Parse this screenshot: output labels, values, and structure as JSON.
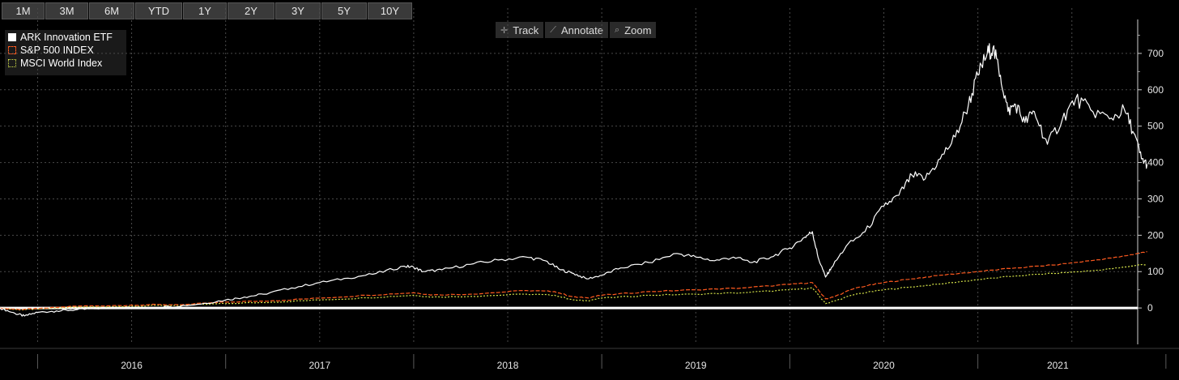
{
  "range_buttons": [
    "1M",
    "3M",
    "6M",
    "YTD",
    "1Y",
    "2Y",
    "3Y",
    "5Y",
    "10Y"
  ],
  "toolbar": [
    {
      "label": "Track",
      "icon": "crosshair-icon",
      "glyph": "✛"
    },
    {
      "label": "Annotate",
      "icon": "pencil-icon",
      "glyph": "⟋"
    },
    {
      "label": "Zoom",
      "icon": "magnifier-icon",
      "glyph": "⌕"
    }
  ],
  "legend": [
    {
      "name": "ARK Innovation ETF",
      "color": "#ffffff",
      "style": "solid"
    },
    {
      "name": "S&P 500 INDEX",
      "color": "#ff5a1f",
      "style": "dashed"
    },
    {
      "name": "MSCI World Index",
      "color": "#d8e64a",
      "style": "dotted"
    }
  ],
  "chart_data": {
    "type": "line",
    "x_axis": {
      "labels": [
        "2016",
        "2017",
        "2018",
        "2019",
        "2020",
        "2021"
      ],
      "range": [
        2015.8,
        2021.85
      ]
    },
    "y_axis": {
      "position": "right",
      "ticks": [
        0,
        100,
        200,
        300,
        400,
        500,
        600,
        700
      ],
      "range": [
        -100,
        780
      ]
    },
    "grid": "dotted",
    "legend_position": "top-left",
    "zero_line": 0,
    "series": [
      {
        "name": "ARK Innovation ETF",
        "color": "#ffffff",
        "style": "solid",
        "points": [
          [
            2015.8,
            0
          ],
          [
            2015.88,
            -15
          ],
          [
            2015.93,
            -22
          ],
          [
            2016.0,
            -12
          ],
          [
            2016.1,
            -8
          ],
          [
            2016.2,
            -5
          ],
          [
            2016.3,
            -2
          ],
          [
            2016.4,
            2
          ],
          [
            2016.55,
            0
          ],
          [
            2016.7,
            4
          ],
          [
            2016.85,
            10
          ],
          [
            2017.0,
            22
          ],
          [
            2017.1,
            30
          ],
          [
            2017.2,
            38
          ],
          [
            2017.35,
            55
          ],
          [
            2017.5,
            70
          ],
          [
            2017.65,
            82
          ],
          [
            2017.8,
            95
          ],
          [
            2017.95,
            115
          ],
          [
            2018.0,
            112
          ],
          [
            2018.05,
            100
          ],
          [
            2018.15,
            105
          ],
          [
            2018.3,
            120
          ],
          [
            2018.45,
            132
          ],
          [
            2018.6,
            140
          ],
          [
            2018.7,
            130
          ],
          [
            2018.78,
            105
          ],
          [
            2018.85,
            95
          ],
          [
            2018.92,
            80
          ],
          [
            2019.0,
            90
          ],
          [
            2019.1,
            110
          ],
          [
            2019.25,
            125
          ],
          [
            2019.4,
            150
          ],
          [
            2019.5,
            140
          ],
          [
            2019.6,
            130
          ],
          [
            2019.7,
            140
          ],
          [
            2019.8,
            125
          ],
          [
            2019.9,
            140
          ],
          [
            2020.0,
            165
          ],
          [
            2020.08,
            195
          ],
          [
            2020.12,
            210
          ],
          [
            2020.15,
            140
          ],
          [
            2020.19,
            85
          ],
          [
            2020.22,
            110
          ],
          [
            2020.3,
            170
          ],
          [
            2020.4,
            210
          ],
          [
            2020.5,
            280
          ],
          [
            2020.58,
            310
          ],
          [
            2020.65,
            365
          ],
          [
            2020.72,
            355
          ],
          [
            2020.8,
            410
          ],
          [
            2020.88,
            470
          ],
          [
            2020.95,
            560
          ],
          [
            2021.0,
            640
          ],
          [
            2021.05,
            700
          ],
          [
            2021.08,
            715
          ],
          [
            2021.12,
            640
          ],
          [
            2021.16,
            540
          ],
          [
            2021.2,
            560
          ],
          [
            2021.25,
            510
          ],
          [
            2021.3,
            540
          ],
          [
            2021.37,
            450
          ],
          [
            2021.45,
            520
          ],
          [
            2021.52,
            575
          ],
          [
            2021.6,
            545
          ],
          [
            2021.7,
            520
          ],
          [
            2021.78,
            545
          ],
          [
            2021.83,
            480
          ],
          [
            2021.87,
            410
          ],
          [
            2021.9,
            395
          ]
        ]
      },
      {
        "name": "S&P 500 INDEX",
        "color": "#ff5a1f",
        "style": "dashed",
        "points": [
          [
            2015.8,
            0
          ],
          [
            2015.9,
            -4
          ],
          [
            2016.0,
            -2
          ],
          [
            2016.2,
            5
          ],
          [
            2016.5,
            8
          ],
          [
            2016.8,
            10
          ],
          [
            2017.0,
            16
          ],
          [
            2017.25,
            20
          ],
          [
            2017.5,
            27
          ],
          [
            2017.75,
            35
          ],
          [
            2018.0,
            42
          ],
          [
            2018.1,
            36
          ],
          [
            2018.3,
            38
          ],
          [
            2018.6,
            48
          ],
          [
            2018.75,
            45
          ],
          [
            2018.85,
            30
          ],
          [
            2018.92,
            28
          ],
          [
            2019.0,
            35
          ],
          [
            2019.25,
            45
          ],
          [
            2019.5,
            50
          ],
          [
            2019.75,
            55
          ],
          [
            2020.0,
            65
          ],
          [
            2020.12,
            70
          ],
          [
            2020.19,
            25
          ],
          [
            2020.23,
            30
          ],
          [
            2020.35,
            55
          ],
          [
            2020.5,
            70
          ],
          [
            2020.65,
            80
          ],
          [
            2020.8,
            90
          ],
          [
            2021.0,
            100
          ],
          [
            2021.2,
            110
          ],
          [
            2021.4,
            118
          ],
          [
            2021.6,
            130
          ],
          [
            2021.75,
            140
          ],
          [
            2021.85,
            150
          ],
          [
            2021.9,
            155
          ]
        ]
      },
      {
        "name": "MSCI World Index",
        "color": "#d8e64a",
        "style": "dotted",
        "points": [
          [
            2015.8,
            0
          ],
          [
            2015.9,
            -5
          ],
          [
            2016.0,
            -3
          ],
          [
            2016.2,
            2
          ],
          [
            2016.5,
            5
          ],
          [
            2016.8,
            8
          ],
          [
            2017.0,
            12
          ],
          [
            2017.25,
            16
          ],
          [
            2017.5,
            22
          ],
          [
            2017.75,
            28
          ],
          [
            2018.0,
            35
          ],
          [
            2018.1,
            30
          ],
          [
            2018.3,
            32
          ],
          [
            2018.6,
            38
          ],
          [
            2018.75,
            35
          ],
          [
            2018.85,
            22
          ],
          [
            2018.92,
            20
          ],
          [
            2019.0,
            27
          ],
          [
            2019.25,
            35
          ],
          [
            2019.5,
            38
          ],
          [
            2019.75,
            42
          ],
          [
            2020.0,
            50
          ],
          [
            2020.12,
            55
          ],
          [
            2020.19,
            12
          ],
          [
            2020.23,
            18
          ],
          [
            2020.35,
            38
          ],
          [
            2020.5,
            50
          ],
          [
            2020.65,
            58
          ],
          [
            2020.8,
            66
          ],
          [
            2021.0,
            78
          ],
          [
            2021.2,
            88
          ],
          [
            2021.4,
            95
          ],
          [
            2021.6,
            102
          ],
          [
            2021.75,
            110
          ],
          [
            2021.85,
            118
          ],
          [
            2021.9,
            120
          ]
        ]
      }
    ]
  }
}
